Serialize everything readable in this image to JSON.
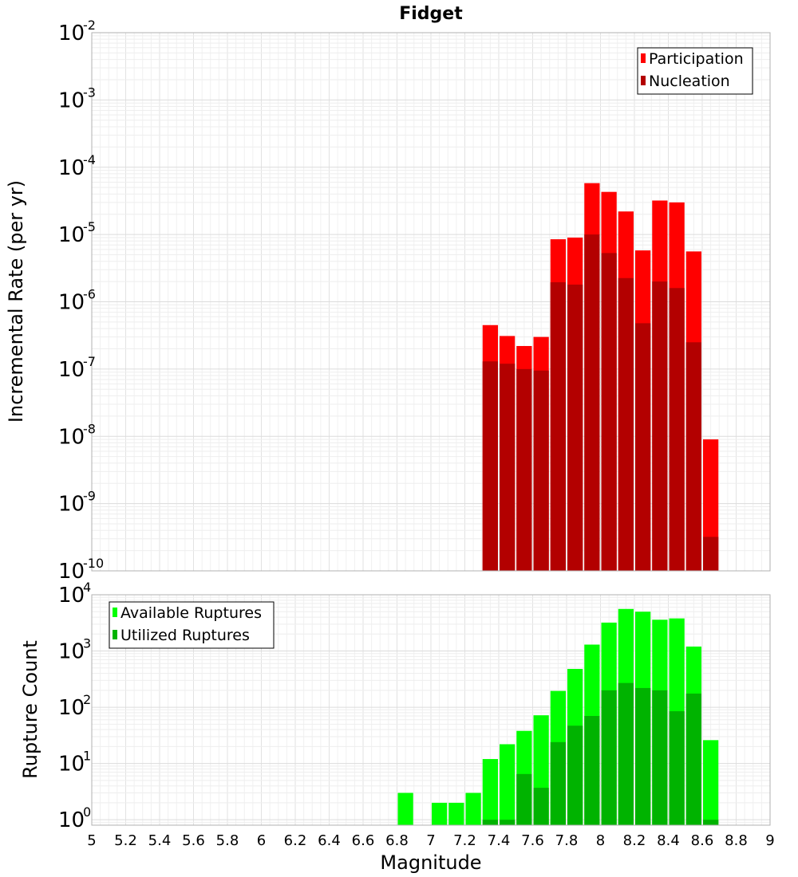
{
  "chart_data": [
    {
      "type": "bar",
      "title": "Fidget",
      "xlabel": "",
      "ylabel": "Incremental Rate (per yr)",
      "yscale": "log",
      "xlim": [
        5,
        9
      ],
      "ylim": [
        1e-10,
        0.01
      ],
      "grid": true,
      "legend_position": "top-right",
      "x": [
        7.35,
        7.45,
        7.55,
        7.65,
        7.75,
        7.85,
        7.95,
        8.05,
        8.15,
        8.25,
        8.35,
        8.45,
        8.55,
        8.65
      ],
      "series": [
        {
          "name": "Participation",
          "color": "#ff0000",
          "values": [
            4.5e-07,
            3.1e-07,
            2.2e-07,
            3e-07,
            8.5e-06,
            9e-06,
            5.8e-05,
            4.3e-05,
            2.2e-05,
            5.8e-06,
            3.2e-05,
            3e-05,
            5.6e-06,
            9e-09
          ]
        },
        {
          "name": "Nucleation",
          "color": "#b30000",
          "values": [
            1.3e-07,
            1.2e-07,
            1e-07,
            9.5e-08,
            1.95e-06,
            1.8e-06,
            1e-05,
            5.3e-06,
            2.25e-06,
            4.8e-07,
            2e-06,
            1.6e-06,
            2.5e-07,
            3.2e-10
          ]
        }
      ],
      "y_ticks": [
        "10",
        "10",
        "10",
        "10",
        "10",
        "10",
        "10",
        "10",
        "10"
      ],
      "y_tick_exponents": [
        "-10",
        "-9",
        "-8",
        "-7",
        "-6",
        "-5",
        "-4",
        "-3",
        "-2"
      ]
    },
    {
      "type": "bar",
      "title": "",
      "xlabel": "Magnitude",
      "ylabel": "Rupture Count",
      "yscale": "log",
      "xlim": [
        5,
        9
      ],
      "ylim": [
        0.8,
        10000
      ],
      "grid": true,
      "legend_position": "top-left",
      "x": [
        6.85,
        7.05,
        7.15,
        7.25,
        7.35,
        7.45,
        7.55,
        7.65,
        7.75,
        7.85,
        7.95,
        8.05,
        8.15,
        8.25,
        8.35,
        8.45,
        8.55,
        8.65
      ],
      "series": [
        {
          "name": "Available Ruptures",
          "color": "#00ff00",
          "values": [
            3,
            2,
            2,
            3,
            12,
            22,
            38,
            72,
            195,
            480,
            1300,
            3200,
            5600,
            5000,
            3600,
            3800,
            1200,
            26
          ]
        },
        {
          "name": "Utilized Ruptures",
          "color": "#00b300",
          "values": [
            null,
            null,
            null,
            null,
            1,
            1,
            6.5,
            3.7,
            24,
            47,
            70,
            200,
            270,
            220,
            200,
            85,
            175,
            1
          ]
        }
      ],
      "x_ticks": [
        "5",
        "5.2",
        "5.4",
        "5.6",
        "5.8",
        "6",
        "6.2",
        "6.4",
        "6.6",
        "6.8",
        "7",
        "7.2",
        "7.4",
        "7.6",
        "7.8",
        "8",
        "8.2",
        "8.4",
        "8.6",
        "8.8",
        "9"
      ],
      "y_ticks": [
        "10",
        "10",
        "10",
        "10",
        "10"
      ],
      "y_tick_exponents": [
        "0",
        "1",
        "2",
        "3",
        "4"
      ]
    }
  ]
}
